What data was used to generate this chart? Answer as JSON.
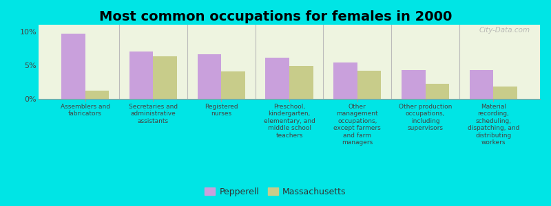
{
  "title": "Most common occupations for females in 2000",
  "categories": [
    "Assemblers and\nfabricators",
    "Secretaries and\nadministrative\nassistants",
    "Registered\nnurses",
    "Preschool,\nkindergarten,\nelementary, and\nmiddle school\nteachers",
    "Other\nmanagement\noccupations,\nexcept farmers\nand farm\nmanagers",
    "Other production\noccupations,\nincluding\nsupervisors",
    "Material\nrecording,\nscheduling,\ndispatching, and\ndistributing\nworkers"
  ],
  "pepperell_values": [
    9.7,
    7.0,
    6.6,
    6.1,
    5.4,
    4.3,
    4.3
  ],
  "massachusetts_values": [
    1.2,
    6.3,
    4.1,
    4.9,
    4.2,
    2.2,
    1.8
  ],
  "pepperell_color": "#c9a0dc",
  "massachusetts_color": "#c8cc8a",
  "background_color": "#00e5e5",
  "plot_bg_color": "#eef4e0",
  "ylim": [
    0,
    11
  ],
  "yticks": [
    0,
    5,
    10
  ],
  "ytick_labels": [
    "0%",
    "5%",
    "10%"
  ],
  "watermark": "City-Data.com",
  "legend_pepperell": "Pepperell",
  "legend_massachusetts": "Massachusetts",
  "title_fontsize": 14,
  "label_fontsize": 6.5,
  "tick_fontsize": 8
}
